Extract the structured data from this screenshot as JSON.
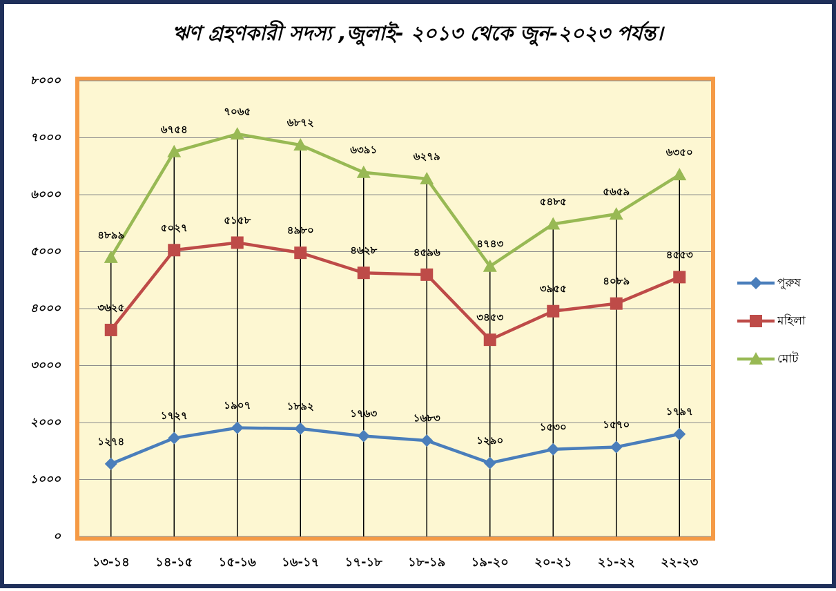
{
  "chart_data": {
    "type": "line",
    "title": "ঋণ গ্রহণকারী সদস্য ,জুলাই- ২০১৩ থেকে জুন-২০২৩ পর্যন্ত।",
    "categories": [
      "১৩-১৪",
      "১৪-১৫",
      "১৫-১৬",
      "১৬-১৭",
      "১৭-১৮",
      "১৮-১৯",
      "১৯-২০",
      "২০-২১",
      "২১-২২",
      "২২-২৩"
    ],
    "series": [
      {
        "name": "পুরুষ",
        "color": "#4a7ebb",
        "marker": "diamond",
        "values": [
          1274,
          1727,
          1907,
          1892,
          1763,
          1683,
          1290,
          1530,
          1570,
          1797
        ],
        "value_labels": [
          "১২৭৪",
          "১৭২৭",
          "১৯০৭",
          "১৮৯২",
          "১৭৬৩",
          "১৬৮৩",
          "১২৯০",
          "১৫৩০",
          "১৫৭০",
          "১৭৯৭"
        ]
      },
      {
        "name": "মহিলা",
        "color": "#be4b48",
        "marker": "square",
        "values": [
          3625,
          5027,
          5158,
          4980,
          4628,
          4596,
          3453,
          3955,
          4089,
          4553
        ],
        "value_labels": [
          "৩৬২৫",
          "৫০২৭",
          "৫১৫৮",
          "৪৯৮০",
          "৪৬২৮",
          "৪৫৯৬",
          "৩৪৫৩",
          "৩৯৫৫",
          "৪০৮৯",
          "৪৫৫৩"
        ]
      },
      {
        "name": "মোট",
        "color": "#98b954",
        "marker": "triangle",
        "values": [
          4899,
          6754,
          7065,
          6872,
          6391,
          6279,
          4743,
          5485,
          5659,
          6350
        ],
        "value_labels": [
          "৪৮৯৯",
          "৬৭৫৪",
          "৭০৬৫",
          "৬৮৭২",
          "৬৩৯১",
          "৬২৭৯",
          "৪৭৪৩",
          "৫৪৮৫",
          "৫৬৫৯",
          "৬৩৫০"
        ]
      }
    ],
    "ylim": [
      0,
      8000
    ],
    "yticks": [
      {
        "value": 0,
        "label": "০"
      },
      {
        "value": 1000,
        "label": "১০০০"
      },
      {
        "value": 2000,
        "label": "২০০০"
      },
      {
        "value": 3000,
        "label": "৩০০০"
      },
      {
        "value": 4000,
        "label": "৪০০০"
      },
      {
        "value": 5000,
        "label": "৫০০০"
      },
      {
        "value": 6000,
        "label": "৬০০০"
      },
      {
        "value": 7000,
        "label": "৭০০০"
      },
      {
        "value": 8000,
        "label": "৮০০০"
      }
    ],
    "grid": true,
    "legend": "right"
  }
}
